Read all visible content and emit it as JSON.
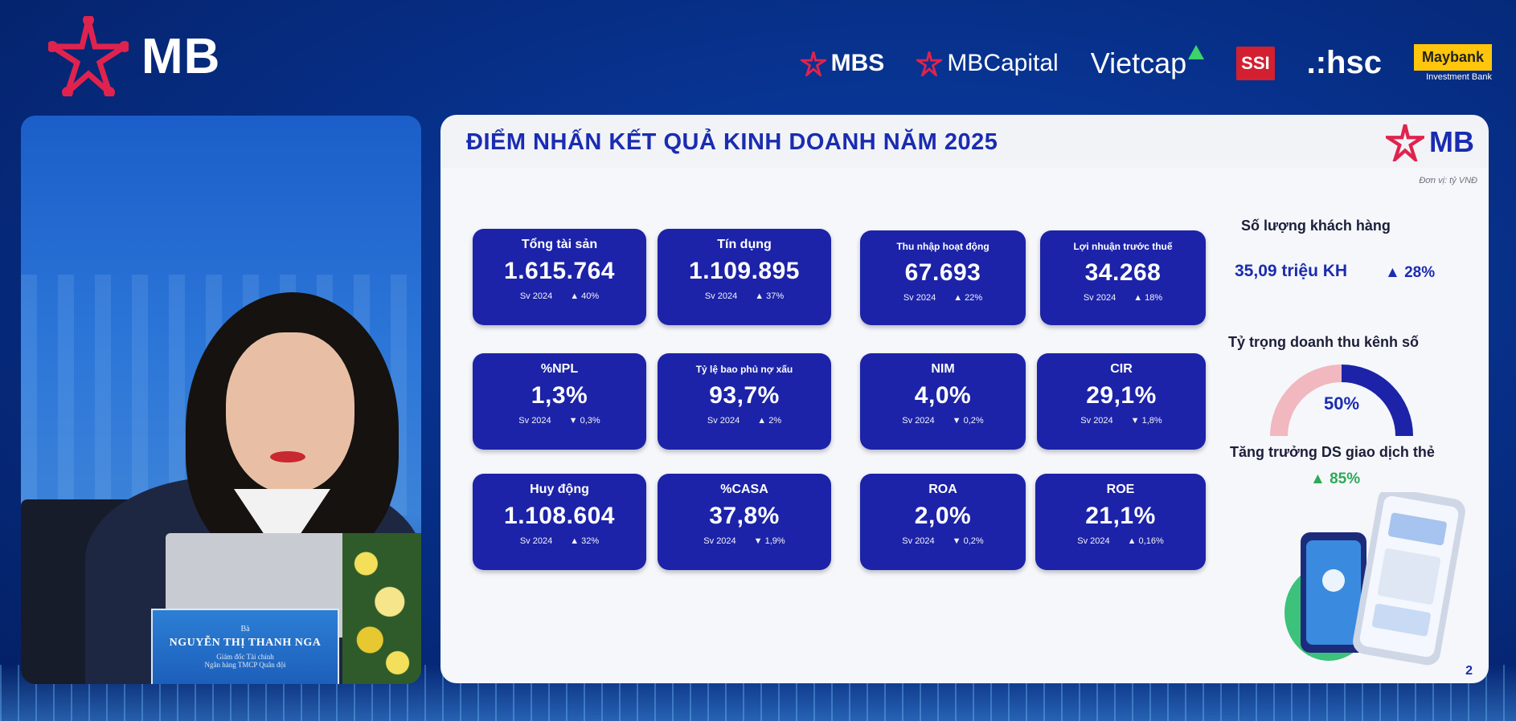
{
  "header": {
    "brand": "MB",
    "partners": [
      {
        "name": "MBS",
        "style": "bold"
      },
      {
        "name": "MBCapital",
        "style": "bold"
      },
      {
        "name": "Vietcap",
        "style": "light"
      },
      {
        "name": "SSI",
        "style": "box"
      },
      {
        "name": ".:hsc",
        "style": "bold"
      },
      {
        "name": "Maybank",
        "sub": "Investment Bank",
        "style": "yellow"
      }
    ]
  },
  "speaker": {
    "nameplate_title": "Bà",
    "nameplate_name": "NGUYỄN THỊ THANH NGA",
    "nameplate_role": "Giám đốc Tài chính",
    "nameplate_org": "Ngân hàng TMCP Quân đội"
  },
  "slide": {
    "title": "ĐIỂM NHẤN KẾT QUẢ KINH DOANH NĂM 2025",
    "logo_text": "MB",
    "unit_note": "Đơn vị: tỷ VNĐ",
    "page_number": "2",
    "cards": [
      {
        "label": "Tổng tài sản",
        "value": "1.615.764",
        "cmp": "Sv 2024",
        "change": "▲ 40%"
      },
      {
        "label": "Tín dụng",
        "value": "1.109.895",
        "cmp": "Sv 2024",
        "change": "▲ 37%"
      },
      {
        "label": "Thu nhập hoạt động",
        "value": "67.693",
        "cmp": "Sv 2024",
        "change": "▲ 22%"
      },
      {
        "label": "Lợi nhuận trước thuế",
        "value": "34.268",
        "cmp": "Sv 2024",
        "change": "▲ 18%"
      },
      {
        "label": "%NPL",
        "value": "1,3%",
        "cmp": "Sv 2024",
        "change": "▼ 0,3%"
      },
      {
        "label": "Tỷ lệ bao phủ nợ xấu",
        "value": "93,7%",
        "cmp": "Sv 2024",
        "change": "▲ 2%"
      },
      {
        "label": "NIM",
        "value": "4,0%",
        "cmp": "Sv 2024",
        "change": "▼ 0,2%"
      },
      {
        "label": "CIR",
        "value": "29,1%",
        "cmp": "Sv 2024",
        "change": "▼ 1,8%"
      },
      {
        "label": "Huy động",
        "value": "1.108.604",
        "cmp": "Sv 2024",
        "change": "▲ 32%"
      },
      {
        "label": "%CASA",
        "value": "37,8%",
        "cmp": "Sv 2024",
        "change": "▼ 1,9%"
      },
      {
        "label": "ROA",
        "value": "2,0%",
        "cmp": "Sv 2024",
        "change": "▼ 0,2%"
      },
      {
        "label": "ROE",
        "value": "21,1%",
        "cmp": "Sv 2024",
        "change": "▲ 0,16%"
      }
    ],
    "customers_title": "Số lượng khách hàng",
    "customers_value": "35,09 triệu KH",
    "customers_growth": "▲ 28%",
    "digital_title": "Tỷ trọng doanh thu kênh số",
    "digital_value": "50%",
    "digital_fraction": 0.5,
    "card_tx_title": "Tăng trưởng DS giao dịch thẻ",
    "card_tx_growth": "▲ 85%",
    "colors": {
      "card_bg": "#1c23a8",
      "title": "#1a2cb0",
      "gauge_fill": "#1c23a8",
      "gauge_rest": "#f1b8bf",
      "green": "#2fa85a"
    }
  }
}
